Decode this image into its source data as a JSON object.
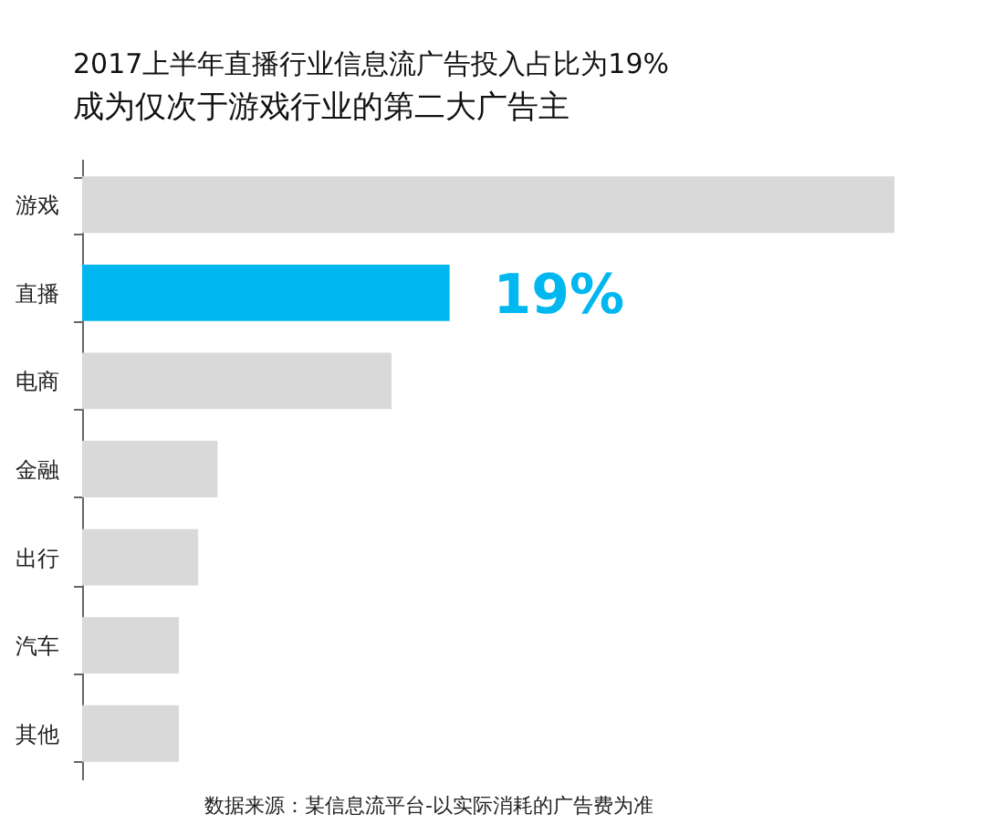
{
  "chart_data": {
    "type": "bar",
    "orientation": "horizontal",
    "title": "2017上半年直播行业信息流广告投入占比为19%",
    "subtitle": "成为仅次于游戏行业的第二大广告主",
    "categories": [
      "游戏",
      "直播",
      "电商",
      "金融",
      "出行",
      "汽车",
      "其他"
    ],
    "values": [
      42,
      19,
      16,
      7,
      6,
      5,
      5
    ],
    "colors": [
      "#d9d9d9",
      "#00b7f0",
      "#d9d9d9",
      "#d9d9d9",
      "#d9d9d9",
      "#d9d9d9",
      "#d9d9d9"
    ],
    "value_labels": [
      null,
      "19%",
      null,
      null,
      null,
      null,
      null
    ],
    "annotations": [
      "数据来源：某信息流平台-以实际消耗的广告费为准"
    ]
  }
}
